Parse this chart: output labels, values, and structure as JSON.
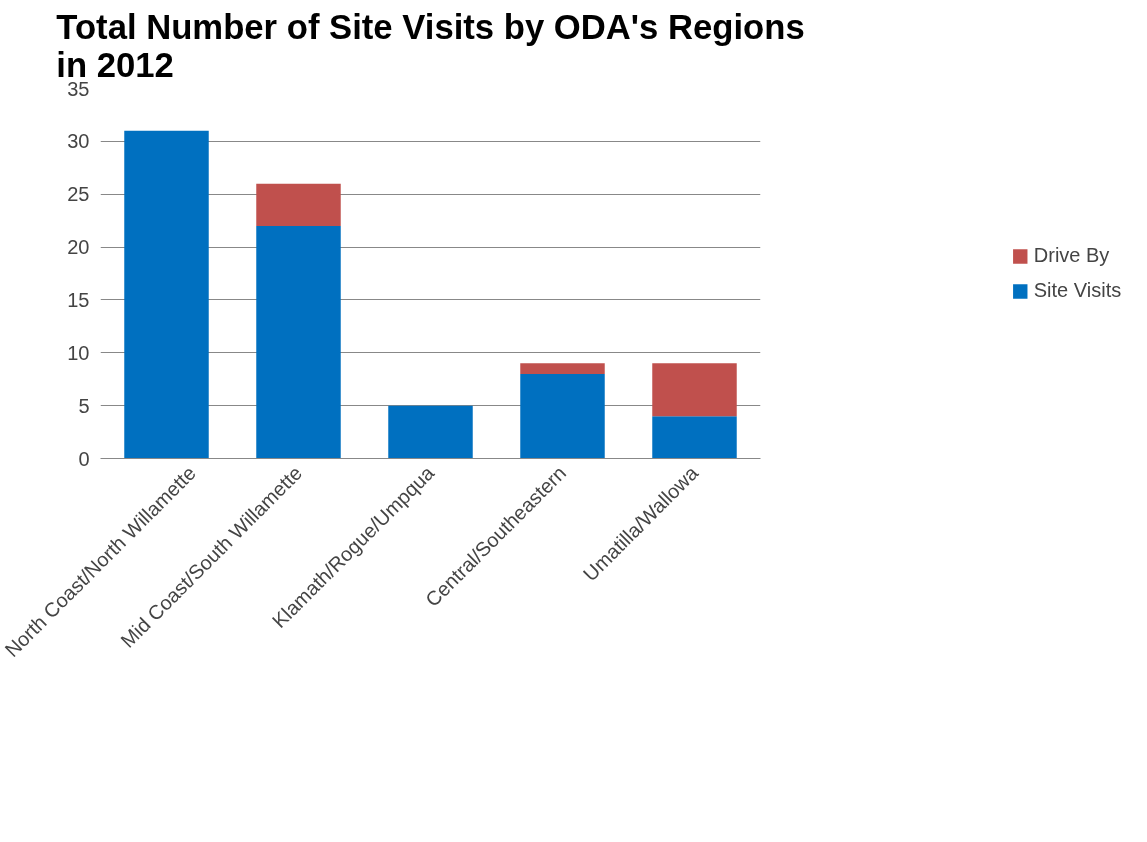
{
  "chart_data": {
    "type": "bar",
    "title": "Total Number of Site Visits by ODA's Regions in 2012",
    "categories": [
      "North Coast/North Willamette",
      "Mid Coast/South Willamette",
      "Klamath/Rogue/Umpqua",
      "Central/Southeastern",
      "Umatilla/Wallowa"
    ],
    "series": [
      {
        "name": "Site Visits",
        "color": "#0070c0",
        "values": [
          31,
          22,
          5,
          8,
          4
        ]
      },
      {
        "name": "Drive By",
        "color": "#c0504d",
        "values": [
          0,
          4,
          0,
          1,
          5
        ]
      }
    ],
    "stacked": true,
    "ylim": [
      0,
      35
    ],
    "yticks": [
      0,
      5,
      10,
      15,
      20,
      25,
      30,
      35
    ],
    "grid": "y",
    "legend": "right"
  }
}
